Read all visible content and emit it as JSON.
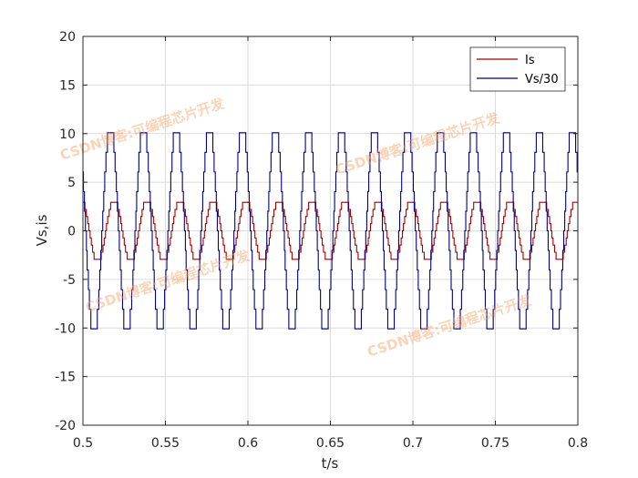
{
  "chart_data": {
    "type": "line",
    "title": "",
    "xlabel": "t/s",
    "ylabel": "Vs,is",
    "xlim": [
      0.5,
      0.8
    ],
    "ylim": [
      -20,
      20
    ],
    "xticks": [
      0.5,
      0.55,
      0.6,
      0.65,
      0.7,
      0.75,
      0.8
    ],
    "xtick_labels": [
      "0.5",
      "0.55",
      "0.6",
      "0.65",
      "0.7",
      "0.75",
      "0.8"
    ],
    "yticks": [
      -20,
      -15,
      -10,
      -5,
      0,
      5,
      10,
      15,
      20
    ],
    "ytick_labels": [
      "-20",
      "-15",
      "-10",
      "-5",
      "0",
      "5",
      "10",
      "15",
      "20"
    ],
    "grid": true,
    "legend_position": "top-right",
    "series": [
      {
        "name": "Is",
        "color": "#a00000",
        "frequency_hz": 50,
        "amplitude": 3.3,
        "phase_deg": 110,
        "step_levels": 9,
        "x_start": 0.5,
        "x_end": 0.8
      },
      {
        "name": "Vs/30",
        "color": "#000080",
        "frequency_hz": 50,
        "amplitude": 11.1,
        "phase_deg": 150,
        "step_levels": 11,
        "x_start": 0.5,
        "x_end": 0.8
      }
    ]
  },
  "watermarks": [
    {
      "text": "CSDN博客:可编程芯片开发"
    },
    {
      "text": "CSDN博客:可编程芯片开发"
    },
    {
      "text": "CSDN博客:可编程芯片开发"
    },
    {
      "text": "CSDN博客:可编程芯片开发"
    }
  ]
}
